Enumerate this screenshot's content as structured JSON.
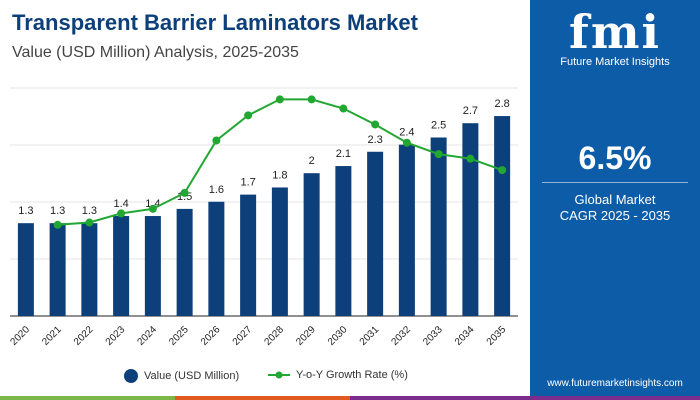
{
  "header": {
    "title": "Transparent Barrier Laminators Market",
    "subtitle": "Value (USD Million) Analysis, 2025-2035"
  },
  "side": {
    "logo_text": "fmi",
    "logo_subtitle": "Future Market Insights",
    "cagr_value": "6.5%",
    "cagr_line1": "Global Market",
    "cagr_line2": "CAGR 2025 - 2035",
    "url": "www.futuremarketinsights.com",
    "color": "#0d5ca8"
  },
  "colors": {
    "bar": "#0d3f7a",
    "line": "#22a832",
    "stripes": [
      "#7ab648",
      "#e05a1e",
      "#7b2d8b"
    ]
  },
  "chart_data": {
    "type": "bar+line",
    "categories": [
      "2020",
      "2021",
      "2022",
      "2023",
      "2024",
      "2025",
      "2026",
      "2027",
      "2028",
      "2029",
      "2030",
      "2031",
      "2032",
      "2033",
      "2034",
      "2035"
    ],
    "series": [
      {
        "name": "Value (USD Million)",
        "type": "bar",
        "values": [
          1.3,
          1.3,
          1.3,
          1.4,
          1.4,
          1.5,
          1.6,
          1.7,
          1.8,
          2,
          2.1,
          2.3,
          2.4,
          2.5,
          2.7,
          2.8
        ],
        "labels": [
          "1.3",
          "1.3",
          "1.3",
          "1.4",
          "1.4",
          "1.5",
          "1.6",
          "1.7",
          "1.8",
          "2",
          "2.1",
          "2.3",
          "2.4",
          "2.5",
          "2.7",
          "2.8"
        ]
      },
      {
        "name": "Y-o-Y Growth Rate (%)",
        "type": "line",
        "values": [
          null,
          4.0,
          4.1,
          4.5,
          4.7,
          5.4,
          7.7,
          8.8,
          9.5,
          9.5,
          9.1,
          8.4,
          7.6,
          7.1,
          6.9,
          6.4
        ]
      }
    ],
    "ylim": [
      0,
      3.2
    ],
    "y2lim": [
      0,
      10
    ],
    "grid": true,
    "legend": "bottom"
  }
}
